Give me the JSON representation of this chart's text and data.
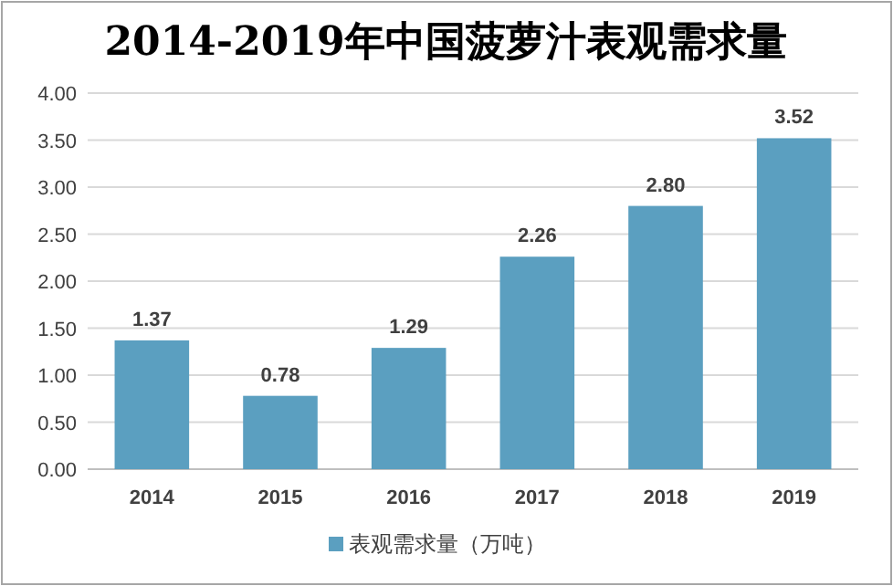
{
  "chart_data": {
    "type": "bar",
    "title": "2014-2019年中国菠萝汁表观需求量",
    "categories": [
      "2014",
      "2015",
      "2016",
      "2017",
      "2018",
      "2019"
    ],
    "series": [
      {
        "name": "表观需求量（万吨）",
        "color": "#5b9fc0",
        "values": [
          1.37,
          0.78,
          1.29,
          2.26,
          2.8,
          3.52
        ]
      }
    ],
    "value_labels": [
      "1.37",
      "0.78",
      "1.29",
      "2.26",
      "2.80",
      "3.52"
    ],
    "ylim": [
      0,
      4
    ],
    "yticks": [
      {
        "value": 0,
        "label": "0.00"
      },
      {
        "value": 0.5,
        "label": "0.50"
      },
      {
        "value": 1,
        "label": "1.00"
      },
      {
        "value": 1.5,
        "label": "1.50"
      },
      {
        "value": 2,
        "label": "2.00"
      },
      {
        "value": 2.5,
        "label": "2.50"
      },
      {
        "value": 3,
        "label": "3.00"
      },
      {
        "value": 3.5,
        "label": "3.50"
      },
      {
        "value": 4,
        "label": "4.00"
      }
    ],
    "grid": "y",
    "legend": "bottom"
  }
}
